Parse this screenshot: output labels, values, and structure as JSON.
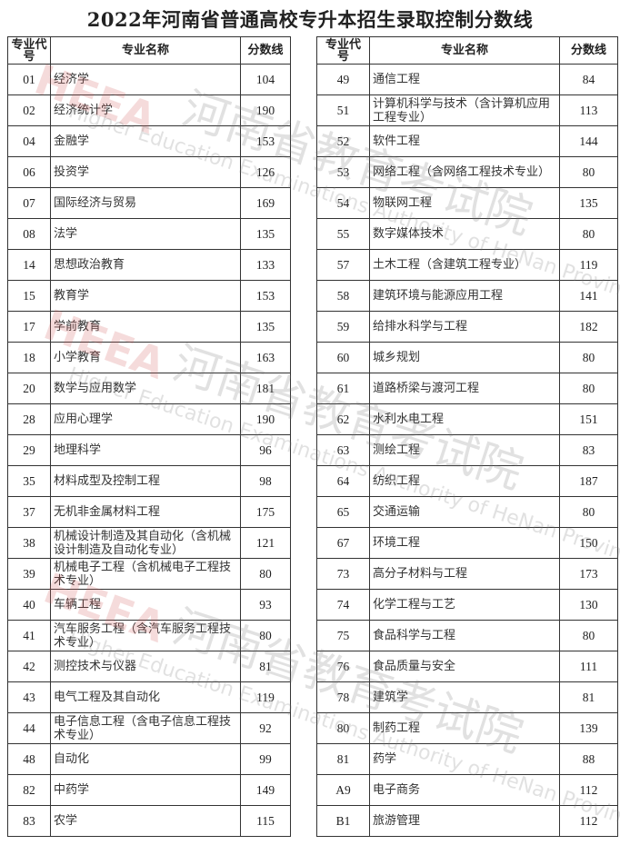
{
  "title": "2022年河南省普通高校专升本招生录取控制分数线",
  "headers": {
    "code": "专业代号",
    "name": "专业名称",
    "score": "分数线"
  },
  "watermark": {
    "cn": "河南省教育考试院",
    "en": "Higher Education Examinations Authority of HeNan Province",
    "logo": "HEEA"
  },
  "left_rows": [
    {
      "code": "01",
      "name": "经济学",
      "score": "104"
    },
    {
      "code": "02",
      "name": "经济统计学",
      "score": "190"
    },
    {
      "code": "04",
      "name": "金融学",
      "score": "153"
    },
    {
      "code": "06",
      "name": "投资学",
      "score": "126"
    },
    {
      "code": "07",
      "name": "国际经济与贸易",
      "score": "169"
    },
    {
      "code": "08",
      "name": "法学",
      "score": "135"
    },
    {
      "code": "14",
      "name": "思想政治教育",
      "score": "133"
    },
    {
      "code": "15",
      "name": "教育学",
      "score": "153"
    },
    {
      "code": "17",
      "name": "学前教育",
      "score": "135"
    },
    {
      "code": "18",
      "name": "小学教育",
      "score": "163"
    },
    {
      "code": "20",
      "name": "数学与应用数学",
      "score": "181"
    },
    {
      "code": "28",
      "name": "应用心理学",
      "score": "190"
    },
    {
      "code": "29",
      "name": "地理科学",
      "score": "96"
    },
    {
      "code": "35",
      "name": "材料成型及控制工程",
      "score": "98"
    },
    {
      "code": "37",
      "name": "无机非金属材料工程",
      "score": "175"
    },
    {
      "code": "38",
      "name": "机械设计制造及其自动化（含机械设计制造及自动化专业）",
      "score": "121"
    },
    {
      "code": "39",
      "name": "机械电子工程（含机械电子工程技术专业）",
      "score": "80"
    },
    {
      "code": "40",
      "name": "车辆工程",
      "score": "93"
    },
    {
      "code": "41",
      "name": "汽车服务工程（含汽车服务工程技术专业）",
      "score": "80"
    },
    {
      "code": "42",
      "name": "测控技术与仪器",
      "score": "81"
    },
    {
      "code": "43",
      "name": "电气工程及其自动化",
      "score": "119"
    },
    {
      "code": "44",
      "name": "电子信息工程（含电子信息工程技术专业）",
      "score": "92"
    },
    {
      "code": "48",
      "name": "自动化",
      "score": "99"
    },
    {
      "code": "82",
      "name": "中药学",
      "score": "149"
    },
    {
      "code": "83",
      "name": "农学",
      "score": "115"
    }
  ],
  "right_rows": [
    {
      "code": "49",
      "name": "通信工程",
      "score": "84"
    },
    {
      "code": "51",
      "name": "计算机科学与技术（含计算机应用工程专业）",
      "score": "113"
    },
    {
      "code": "52",
      "name": "软件工程",
      "score": "144"
    },
    {
      "code": "53",
      "name": "网络工程（含网络工程技术专业）",
      "score": "80"
    },
    {
      "code": "54",
      "name": "物联网工程",
      "score": "135"
    },
    {
      "code": "55",
      "name": "数字媒体技术",
      "score": "80"
    },
    {
      "code": "57",
      "name": "土木工程（含建筑工程专业）",
      "score": "119"
    },
    {
      "code": "58",
      "name": "建筑环境与能源应用工程",
      "score": "141"
    },
    {
      "code": "59",
      "name": "给排水科学与工程",
      "score": "182"
    },
    {
      "code": "60",
      "name": "城乡规划",
      "score": "80"
    },
    {
      "code": "61",
      "name": "道路桥梁与渡河工程",
      "score": "80"
    },
    {
      "code": "62",
      "name": "水利水电工程",
      "score": "151"
    },
    {
      "code": "63",
      "name": "测绘工程",
      "score": "83"
    },
    {
      "code": "64",
      "name": "纺织工程",
      "score": "187"
    },
    {
      "code": "65",
      "name": "交通运输",
      "score": "80"
    },
    {
      "code": "67",
      "name": "环境工程",
      "score": "150"
    },
    {
      "code": "73",
      "name": "高分子材料与工程",
      "score": "173"
    },
    {
      "code": "74",
      "name": "化学工程与工艺",
      "score": "130"
    },
    {
      "code": "75",
      "name": "食品科学与工程",
      "score": "80"
    },
    {
      "code": "76",
      "name": "食品质量与安全",
      "score": "111"
    },
    {
      "code": "78",
      "name": "建筑学",
      "score": "81"
    },
    {
      "code": "80",
      "name": "制药工程",
      "score": "139"
    },
    {
      "code": "81",
      "name": "药学",
      "score": "88"
    },
    {
      "code": "A9",
      "name": "电子商务",
      "score": "112"
    },
    {
      "code": "B1",
      "name": "旅游管理",
      "score": "112"
    }
  ]
}
